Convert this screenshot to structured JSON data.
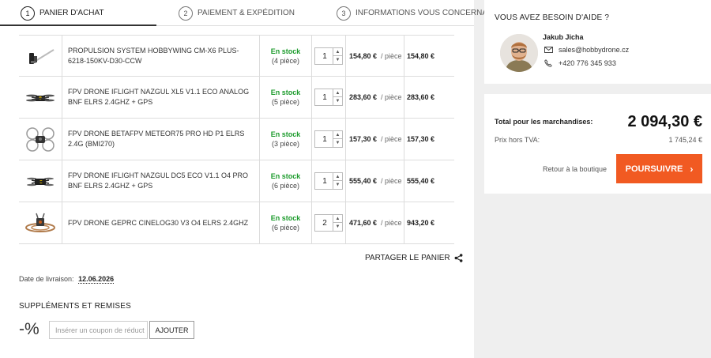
{
  "steps": [
    {
      "num": "1",
      "label": "PANIER D'ACHAT"
    },
    {
      "num": "2",
      "label": "PAIEMENT & EXPÉDITION"
    },
    {
      "num": "3",
      "label": "INFORMATIONS VOUS CONCERNANT"
    }
  ],
  "cart": {
    "items": [
      {
        "name": "PROPULSION SYSTEM HOBBYWING CM-X6 PLUS-6218-150KV-D30-CCW",
        "stock": "En stock",
        "stock_qty": "(4 pièce)",
        "qty": "1",
        "unit_price": "154,80 €",
        "per": "/ pièce",
        "total": "154,80 €"
      },
      {
        "name": "FPV DRONE IFLIGHT NAZGUL XL5 V1.1 ECO ANALOG BNF ELRS 2.4GHZ + GPS",
        "stock": "En stock",
        "stock_qty": "(5 pièce)",
        "qty": "1",
        "unit_price": "283,60 €",
        "per": "/ pièce",
        "total": "283,60 €"
      },
      {
        "name": "FPV DRONE BETAFPV METEOR75 PRO HD P1 ELRS 2.4G (BMI270)",
        "stock": "En stock",
        "stock_qty": "(3 pièce)",
        "qty": "1",
        "unit_price": "157,30 €",
        "per": "/ pièce",
        "total": "157,30 €"
      },
      {
        "name": "FPV DRONE IFLIGHT NAZGUL DC5 ECO V1.1 O4 PRO BNF ELRS 2.4GHZ + GPS",
        "stock": "En stock",
        "stock_qty": "(6 pièce)",
        "qty": "1",
        "unit_price": "555,40 €",
        "per": "/ pièce",
        "total": "555,40 €"
      },
      {
        "name": "FPV DRONE GEPRC CINELOG30 V3 O4 ELRS 2.4GHZ",
        "stock": "En stock",
        "stock_qty": "(6 pièce)",
        "qty": "2",
        "unit_price": "471,60 €",
        "per": "/ pièce",
        "total": "943,20 €"
      }
    ]
  },
  "share": {
    "label": "PARTAGER LE PANIER",
    "icon": "share-icon"
  },
  "delivery": {
    "label": "Date de livraison:",
    "date": "12.06.2026"
  },
  "supplements": {
    "title": "SUPPLÉMENTS ET REMISES",
    "icon_text": "-%",
    "coupon_placeholder": "Insérer un coupon de réduct",
    "apply_label": "AJOUTER"
  },
  "help": {
    "title": "VOUS AVEZ BESOIN D'AIDE ?",
    "name": "Jakub Jicha",
    "email": "sales@hobbydrone.cz",
    "phone": "+420 776 345 933"
  },
  "summary": {
    "total_label": "Total pour les marchandises:",
    "total_value": "2 094,30 €",
    "vat_label": "Prix hors TVA:",
    "vat_value": "1 745,24 €",
    "back_label": "Retour à la boutique",
    "continue_label": "POURSUIVRE"
  },
  "colors": {
    "accent": "#f15a22",
    "stock": "#1a9a2a",
    "panel": "#efefef"
  }
}
